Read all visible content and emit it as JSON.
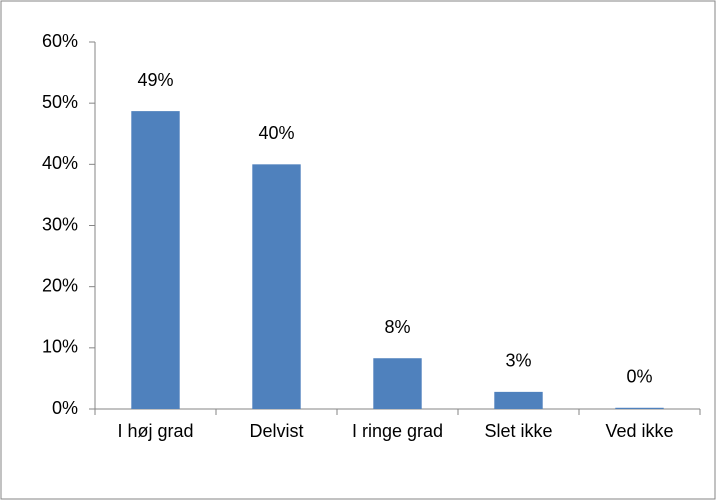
{
  "chart_data": {
    "type": "bar",
    "categories": [
      "I høj grad",
      "Delvist",
      "I ringe grad",
      "Slet ikke",
      "Ved ikke"
    ],
    "values": [
      48.7,
      40.0,
      8.3,
      2.8,
      0.2
    ],
    "value_labels": [
      "49%",
      "40%",
      "8%",
      "3%",
      "0%"
    ],
    "color": "#4f81bd",
    "ylim": [
      0,
      60
    ],
    "yticks": [
      {
        "value": 0,
        "label": "0%"
      },
      {
        "value": 10,
        "label": "10%"
      },
      {
        "value": 20,
        "label": "20%"
      },
      {
        "value": 30,
        "label": "30%"
      },
      {
        "value": 40,
        "label": "40%"
      },
      {
        "value": 50,
        "label": "50%"
      },
      {
        "value": 60,
        "label": "60%"
      }
    ],
    "grid": false
  }
}
